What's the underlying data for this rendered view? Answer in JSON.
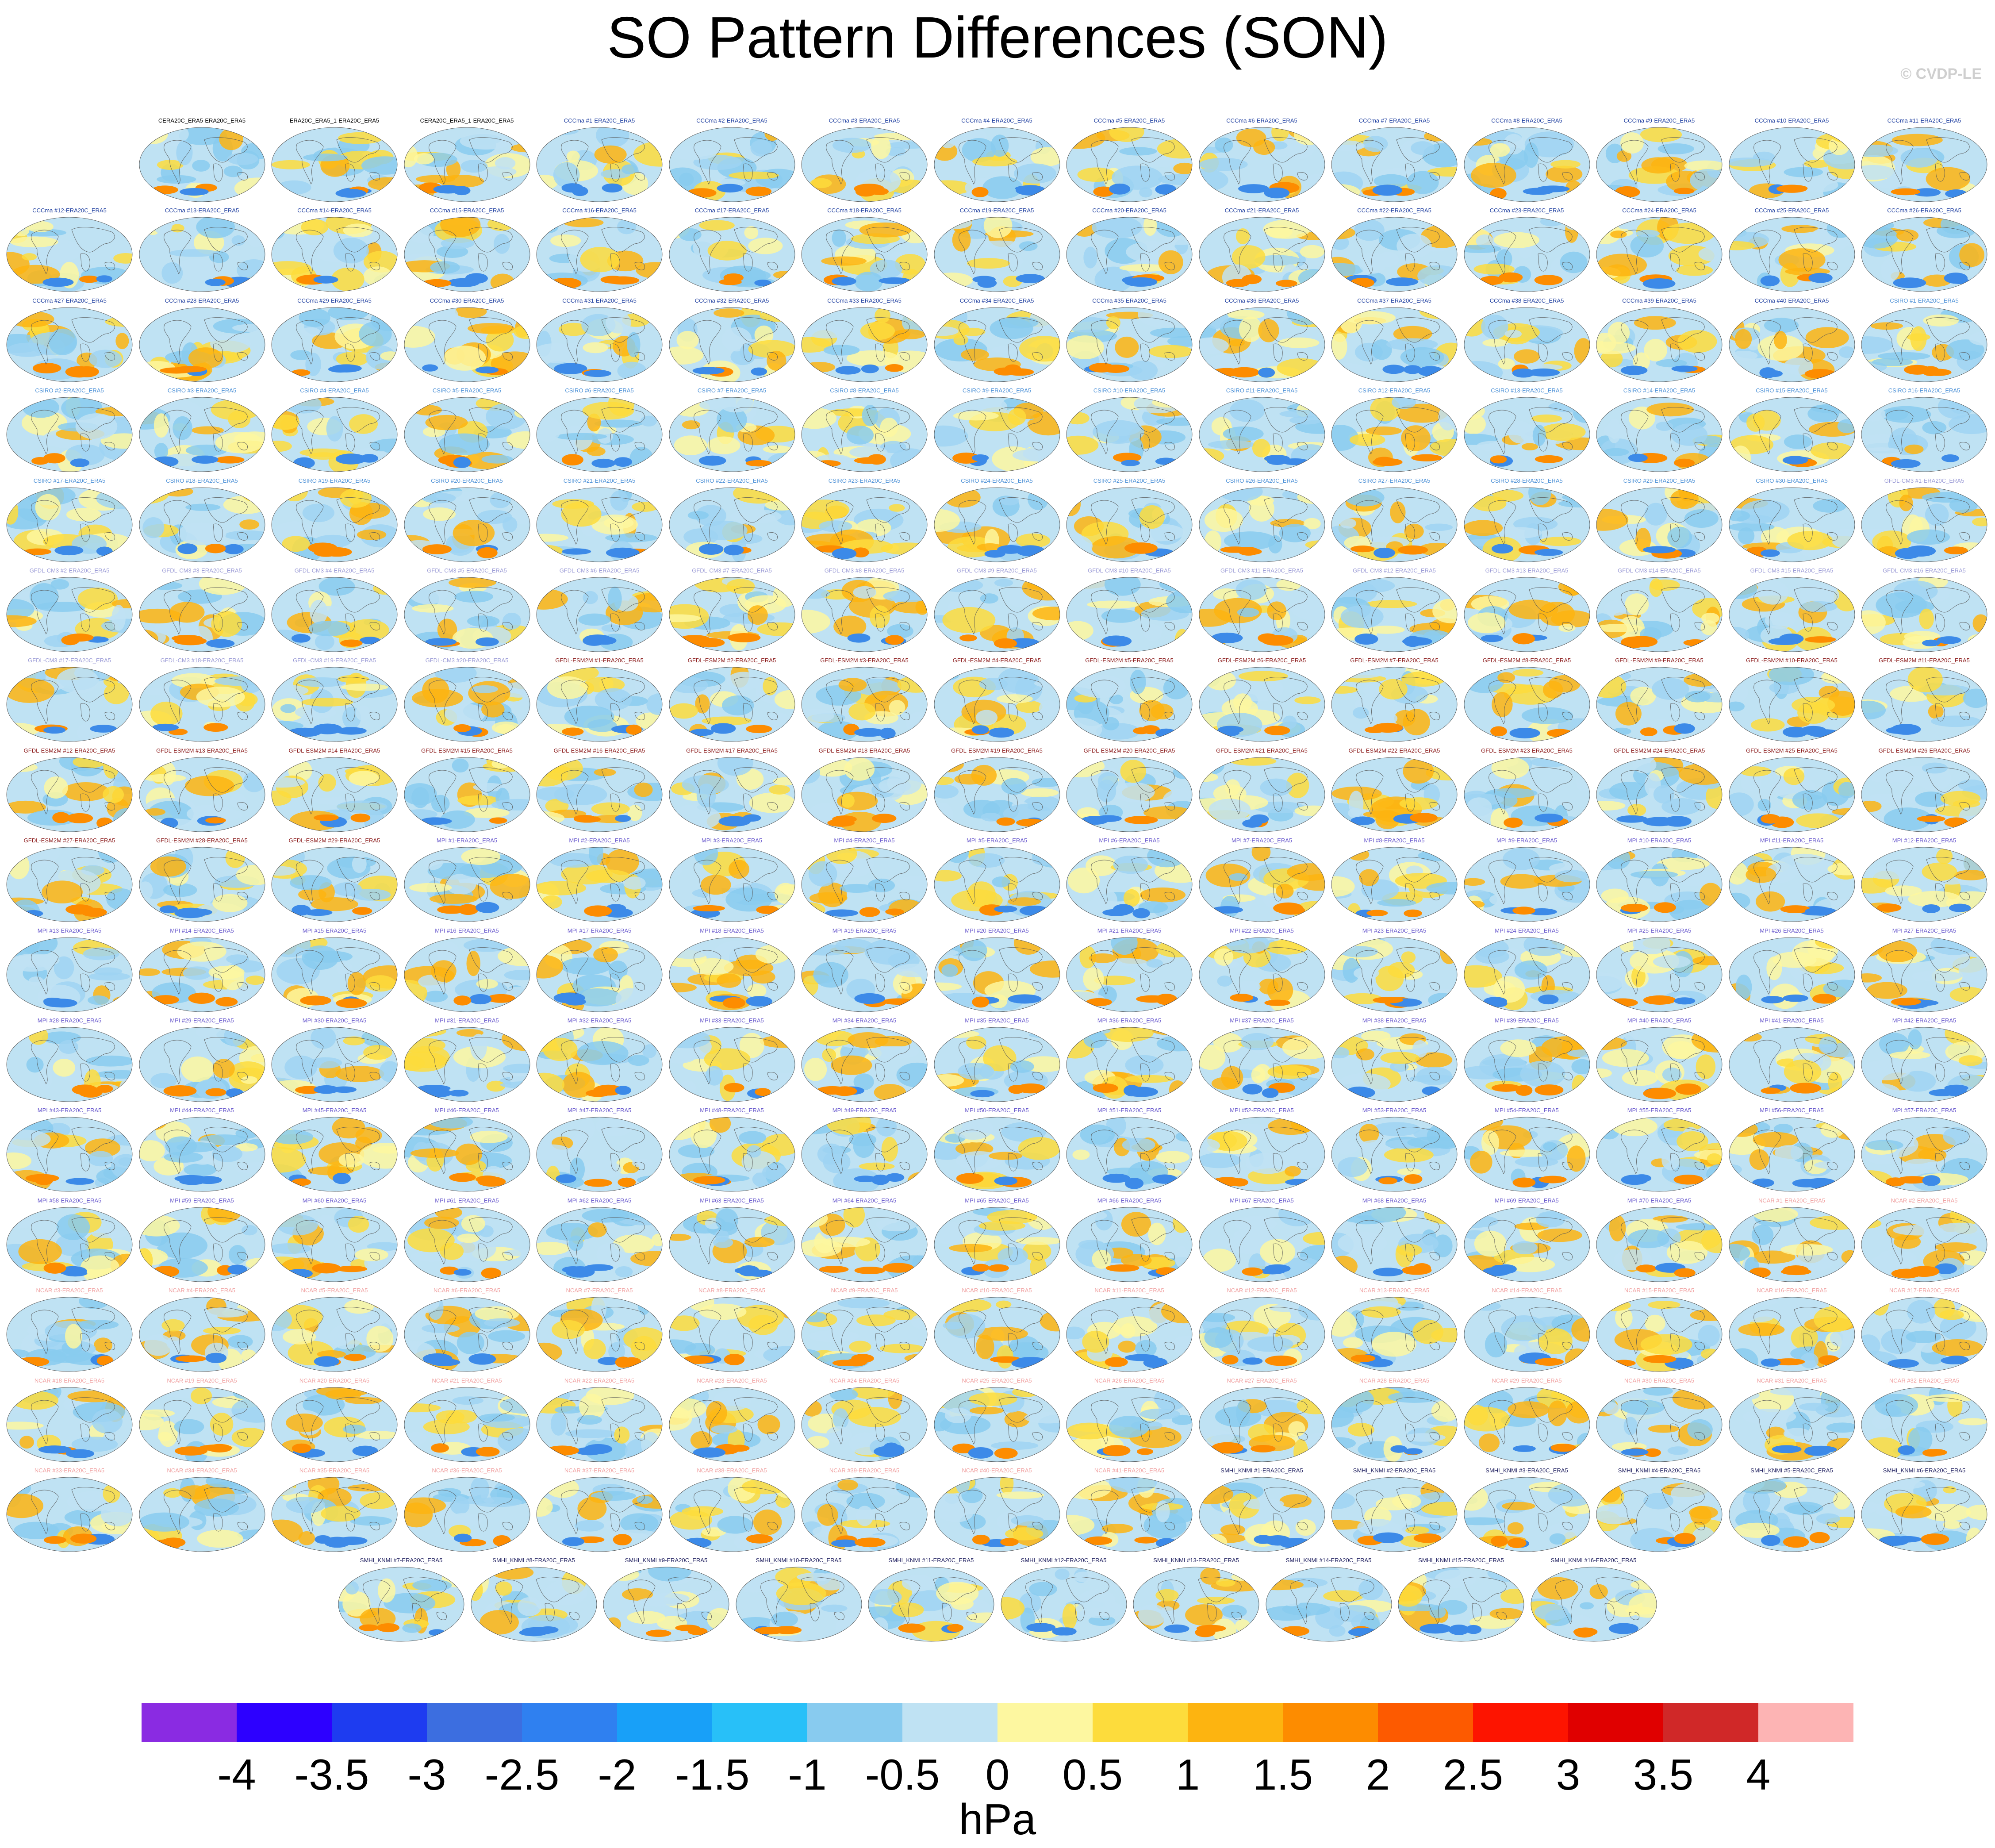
{
  "title": "SO Pattern Differences (SON)",
  "watermark": "© CVDP-LE",
  "chart_data": {
    "type": "heatmap",
    "title": "SO Pattern Differences (SON)",
    "description_units": "hPa",
    "panel_rows": [
      [
        "CERA20C_ERA5-ERA20C_ERA5",
        "ERA20C_ERA5_1-ERA20C_ERA5",
        "CERA20C_ERA5_1-ERA20C_ERA5",
        "CCCma #1-ERA20C_ERA5",
        "CCCma #2-ERA20C_ERA5",
        "CCCma #3-ERA20C_ERA5",
        "CCCma #4-ERA20C_ERA5",
        "CCCma #5-ERA20C_ERA5",
        "CCCma #6-ERA20C_ERA5",
        "CCCma #7-ERA20C_ERA5",
        "CCCma #8-ERA20C_ERA5",
        "CCCma #9-ERA20C_ERA5",
        "CCCma #10-ERA20C_ERA5",
        "CCCma #11-ERA20C_ERA5"
      ],
      [
        "CCCma #12-ERA20C_ERA5",
        "CCCma #13-ERA20C_ERA5",
        "CCCma #14-ERA20C_ERA5",
        "CCCma #15-ERA20C_ERA5",
        "CCCma #16-ERA20C_ERA5",
        "CCCma #17-ERA20C_ERA5",
        "CCCma #18-ERA20C_ERA5",
        "CCCma #19-ERA20C_ERA5",
        "CCCma #20-ERA20C_ERA5",
        "CCCma #21-ERA20C_ERA5",
        "CCCma #22-ERA20C_ERA5",
        "CCCma #23-ERA20C_ERA5",
        "CCCma #24-ERA20C_ERA5",
        "CCCma #25-ERA20C_ERA5",
        "CCCma #26-ERA20C_ERA5"
      ],
      [
        "CCCma #27-ERA20C_ERA5",
        "CCCma #28-ERA20C_ERA5",
        "CCCma #29-ERA20C_ERA5",
        "CCCma #30-ERA20C_ERA5",
        "CCCma #31-ERA20C_ERA5",
        "CCCma #32-ERA20C_ERA5",
        "CCCma #33-ERA20C_ERA5",
        "CCCma #34-ERA20C_ERA5",
        "CCCma #35-ERA20C_ERA5",
        "CCCma #36-ERA20C_ERA5",
        "CCCma #37-ERA20C_ERA5",
        "CCCma #38-ERA20C_ERA5",
        "CCCma #39-ERA20C_ERA5",
        "CCCma #40-ERA20C_ERA5",
        "CSIRO #1-ERA20C_ERA5"
      ],
      [
        "CSIRO #2-ERA20C_ERA5",
        "CSIRO #3-ERA20C_ERA5",
        "CSIRO #4-ERA20C_ERA5",
        "CSIRO #5-ERA20C_ERA5",
        "CSIRO #6-ERA20C_ERA5",
        "CSIRO #7-ERA20C_ERA5",
        "CSIRO #8-ERA20C_ERA5",
        "CSIRO #9-ERA20C_ERA5",
        "CSIRO #10-ERA20C_ERA5",
        "CSIRO #11-ERA20C_ERA5",
        "CSIRO #12-ERA20C_ERA5",
        "CSIRO #13-ERA20C_ERA5",
        "CSIRO #14-ERA20C_ERA5",
        "CSIRO #15-ERA20C_ERA5",
        "CSIRO #16-ERA20C_ERA5"
      ],
      [
        "CSIRO #17-ERA20C_ERA5",
        "CSIRO #18-ERA20C_ERA5",
        "CSIRO #19-ERA20C_ERA5",
        "CSIRO #20-ERA20C_ERA5",
        "CSIRO #21-ERA20C_ERA5",
        "CSIRO #22-ERA20C_ERA5",
        "CSIRO #23-ERA20C_ERA5",
        "CSIRO #24-ERA20C_ERA5",
        "CSIRO #25-ERA20C_ERA5",
        "CSIRO #26-ERA20C_ERA5",
        "CSIRO #27-ERA20C_ERA5",
        "CSIRO #28-ERA20C_ERA5",
        "CSIRO #29-ERA20C_ERA5",
        "CSIRO #30-ERA20C_ERA5",
        "GFDL-CM3 #1-ERA20C_ERA5"
      ],
      [
        "GFDL-CM3 #2-ERA20C_ERA5",
        "GFDL-CM3 #3-ERA20C_ERA5",
        "GFDL-CM3 #4-ERA20C_ERA5",
        "GFDL-CM3 #5-ERA20C_ERA5",
        "GFDL-CM3 #6-ERA20C_ERA5",
        "GFDL-CM3 #7-ERA20C_ERA5",
        "GFDL-CM3 #8-ERA20C_ERA5",
        "GFDL-CM3 #9-ERA20C_ERA5",
        "GFDL-CM3 #10-ERA20C_ERA5",
        "GFDL-CM3 #11-ERA20C_ERA5",
        "GFDL-CM3 #12-ERA20C_ERA5",
        "GFDL-CM3 #13-ERA20C_ERA5",
        "GFDL-CM3 #14-ERA20C_ERA5",
        "GFDL-CM3 #15-ERA20C_ERA5",
        "GFDL-CM3 #16-ERA20C_ERA5"
      ],
      [
        "GFDL-CM3 #17-ERA20C_ERA5",
        "GFDL-CM3 #18-ERA20C_ERA5",
        "GFDL-CM3 #19-ERA20C_ERA5",
        "GFDL-CM3 #20-ERA20C_ERA5",
        "GFDL-ESM2M #1-ERA20C_ERA5",
        "GFDL-ESM2M #2-ERA20C_ERA5",
        "GFDL-ESM2M #3-ERA20C_ERA5",
        "GFDL-ESM2M #4-ERA20C_ERA5",
        "GFDL-ESM2M #5-ERA20C_ERA5",
        "GFDL-ESM2M #6-ERA20C_ERA5",
        "GFDL-ESM2M #7-ERA20C_ERA5",
        "GFDL-ESM2M #8-ERA20C_ERA5",
        "GFDL-ESM2M #9-ERA20C_ERA5",
        "GFDL-ESM2M #10-ERA20C_ERA5",
        "GFDL-ESM2M #11-ERA20C_ERA5"
      ],
      [
        "GFDL-ESM2M #12-ERA20C_ERA5",
        "GFDL-ESM2M #13-ERA20C_ERA5",
        "GFDL-ESM2M #14-ERA20C_ERA5",
        "GFDL-ESM2M #15-ERA20C_ERA5",
        "GFDL-ESM2M #16-ERA20C_ERA5",
        "GFDL-ESM2M #17-ERA20C_ERA5",
        "GFDL-ESM2M #18-ERA20C_ERA5",
        "GFDL-ESM2M #19-ERA20C_ERA5",
        "GFDL-ESM2M #20-ERA20C_ERA5",
        "GFDL-ESM2M #21-ERA20C_ERA5",
        "GFDL-ESM2M #22-ERA20C_ERA5",
        "GFDL-ESM2M #23-ERA20C_ERA5",
        "GFDL-ESM2M #24-ERA20C_ERA5",
        "GFDL-ESM2M #25-ERA20C_ERA5",
        "GFDL-ESM2M #26-ERA20C_ERA5"
      ],
      [
        "GFDL-ESM2M #27-ERA20C_ERA5",
        "GFDL-ESM2M #28-ERA20C_ERA5",
        "GFDL-ESM2M #29-ERA20C_ERA5",
        "MPI #1-ERA20C_ERA5",
        "MPI #2-ERA20C_ERA5",
        "MPI #3-ERA20C_ERA5",
        "MPI #4-ERA20C_ERA5",
        "MPI #5-ERA20C_ERA5",
        "MPI #6-ERA20C_ERA5",
        "MPI #7-ERA20C_ERA5",
        "MPI #8-ERA20C_ERA5",
        "MPI #9-ERA20C_ERA5",
        "MPI #10-ERA20C_ERA5",
        "MPI #11-ERA20C_ERA5",
        "MPI #12-ERA20C_ERA5"
      ],
      [
        "MPI #13-ERA20C_ERA5",
        "MPI #14-ERA20C_ERA5",
        "MPI #15-ERA20C_ERA5",
        "MPI #16-ERA20C_ERA5",
        "MPI #17-ERA20C_ERA5",
        "MPI #18-ERA20C_ERA5",
        "MPI #19-ERA20C_ERA5",
        "MPI #20-ERA20C_ERA5",
        "MPI #21-ERA20C_ERA5",
        "MPI #22-ERA20C_ERA5",
        "MPI #23-ERA20C_ERA5",
        "MPI #24-ERA20C_ERA5",
        "MPI #25-ERA20C_ERA5",
        "MPI #26-ERA20C_ERA5",
        "MPI #27-ERA20C_ERA5"
      ],
      [
        "MPI #28-ERA20C_ERA5",
        "MPI #29-ERA20C_ERA5",
        "MPI #30-ERA20C_ERA5",
        "MPI #31-ERA20C_ERA5",
        "MPI #32-ERA20C_ERA5",
        "MPI #33-ERA20C_ERA5",
        "MPI #34-ERA20C_ERA5",
        "MPI #35-ERA20C_ERA5",
        "MPI #36-ERA20C_ERA5",
        "MPI #37-ERA20C_ERA5",
        "MPI #38-ERA20C_ERA5",
        "MPI #39-ERA20C_ERA5",
        "MPI #40-ERA20C_ERA5",
        "MPI #41-ERA20C_ERA5",
        "MPI #42-ERA20C_ERA5"
      ],
      [
        "MPI #43-ERA20C_ERA5",
        "MPI #44-ERA20C_ERA5",
        "MPI #45-ERA20C_ERA5",
        "MPI #46-ERA20C_ERA5",
        "MPI #47-ERA20C_ERA5",
        "MPI #48-ERA20C_ERA5",
        "MPI #49-ERA20C_ERA5",
        "MPI #50-ERA20C_ERA5",
        "MPI #51-ERA20C_ERA5",
        "MPI #52-ERA20C_ERA5",
        "MPI #53-ERA20C_ERA5",
        "MPI #54-ERA20C_ERA5",
        "MPI #55-ERA20C_ERA5",
        "MPI #56-ERA20C_ERA5",
        "MPI #57-ERA20C_ERA5"
      ],
      [
        "MPI #58-ERA20C_ERA5",
        "MPI #59-ERA20C_ERA5",
        "MPI #60-ERA20C_ERA5",
        "MPI #61-ERA20C_ERA5",
        "MPI #62-ERA20C_ERA5",
        "MPI #63-ERA20C_ERA5",
        "MPI #64-ERA20C_ERA5",
        "MPI #65-ERA20C_ERA5",
        "MPI #66-ERA20C_ERA5",
        "MPI #67-ERA20C_ERA5",
        "MPI #68-ERA20C_ERA5",
        "MPI #69-ERA20C_ERA5",
        "MPI #70-ERA20C_ERA5",
        "NCAR #1-ERA20C_ERA5",
        "NCAR #2-ERA20C_ERA5"
      ],
      [
        "NCAR #3-ERA20C_ERA5",
        "NCAR #4-ERA20C_ERA5",
        "NCAR #5-ERA20C_ERA5",
        "NCAR #6-ERA20C_ERA5",
        "NCAR #7-ERA20C_ERA5",
        "NCAR #8-ERA20C_ERA5",
        "NCAR #9-ERA20C_ERA5",
        "NCAR #10-ERA20C_ERA5",
        "NCAR #11-ERA20C_ERA5",
        "NCAR #12-ERA20C_ERA5",
        "NCAR #13-ERA20C_ERA5",
        "NCAR #14-ERA20C_ERA5",
        "NCAR #15-ERA20C_ERA5",
        "NCAR #16-ERA20C_ERA5",
        "NCAR #17-ERA20C_ERA5"
      ],
      [
        "NCAR #18-ERA20C_ERA5",
        "NCAR #19-ERA20C_ERA5",
        "NCAR #20-ERA20C_ERA5",
        "NCAR #21-ERA20C_ERA5",
        "NCAR #22-ERA20C_ERA5",
        "NCAR #23-ERA20C_ERA5",
        "NCAR #24-ERA20C_ERA5",
        "NCAR #25-ERA20C_ERA5",
        "NCAR #26-ERA20C_ERA5",
        "NCAR #27-ERA20C_ERA5",
        "NCAR #28-ERA20C_ERA5",
        "NCAR #29-ERA20C_ERA5",
        "NCAR #30-ERA20C_ERA5",
        "NCAR #31-ERA20C_ERA5",
        "NCAR #32-ERA20C_ERA5"
      ],
      [
        "NCAR #33-ERA20C_ERA5",
        "NCAR #34-ERA20C_ERA5",
        "NCAR #35-ERA20C_ERA5",
        "NCAR #36-ERA20C_ERA5",
        "NCAR #37-ERA20C_ERA5",
        "NCAR #38-ERA20C_ERA5",
        "NCAR #39-ERA20C_ERA5",
        "NCAR #40-ERA20C_ERA5",
        "NCAR #41-ERA20C_ERA5",
        "SMHI_KNMI #1-ERA20C_ERA5",
        "SMHI_KNMI #2-ERA20C_ERA5",
        "SMHI_KNMI #3-ERA20C_ERA5",
        "SMHI_KNMI #4-ERA20C_ERA5",
        "SMHI_KNMI #5-ERA20C_ERA5",
        "SMHI_KNMI #6-ERA20C_ERA5"
      ],
      [
        "SMHI_KNMI #7-ERA20C_ERA5",
        "SMHI_KNMI #8-ERA20C_ERA5",
        "SMHI_KNMI #9-ERA20C_ERA5",
        "SMHI_KNMI #10-ERA20C_ERA5",
        "SMHI_KNMI #11-ERA20C_ERA5",
        "SMHI_KNMI #12-ERA20C_ERA5",
        "SMHI_KNMI #13-ERA20C_ERA5",
        "SMHI_KNMI #14-ERA20C_ERA5",
        "SMHI_KNMI #15-ERA20C_ERA5",
        "SMHI_KNMI #16-ERA20C_ERA5"
      ]
    ],
    "title_colors": {
      "CERA20C": "#000000",
      "ERA20C": "#000000",
      "CCCma": "#1f3fa0",
      "CSIRO": "#4a8fd6",
      "GFDL-CM3": "#9b9bd6",
      "GFDL-ESM2M": "#8b1a1a",
      "MPI": "#6a5acd",
      "NCAR": "#f0a0a0",
      "SMHI_KNMI": "#202060"
    },
    "colorbar": {
      "label": "hPa",
      "colors": [
        "#8a2be2",
        "#2d00ff",
        "#1e3cf0",
        "#3c6ee0",
        "#2f80f0",
        "#18a0f8",
        "#28c0f8",
        "#88cbef",
        "#bfe2f3",
        "#fdf7a0",
        "#fddc3c",
        "#fdb410",
        "#fd8c00",
        "#fd5a00",
        "#fd1400",
        "#e00000",
        "#d02828",
        "#fdb4b4"
      ],
      "tick_labels": [
        "-4",
        "-3.5",
        "-3",
        "-2.5",
        "-2",
        "-1.5",
        "-1",
        "-0.5",
        "0",
        "0.5",
        "1",
        "1.5",
        "2",
        "2.5",
        "3",
        "3.5",
        "4"
      ],
      "range": [
        -4,
        4
      ]
    }
  }
}
